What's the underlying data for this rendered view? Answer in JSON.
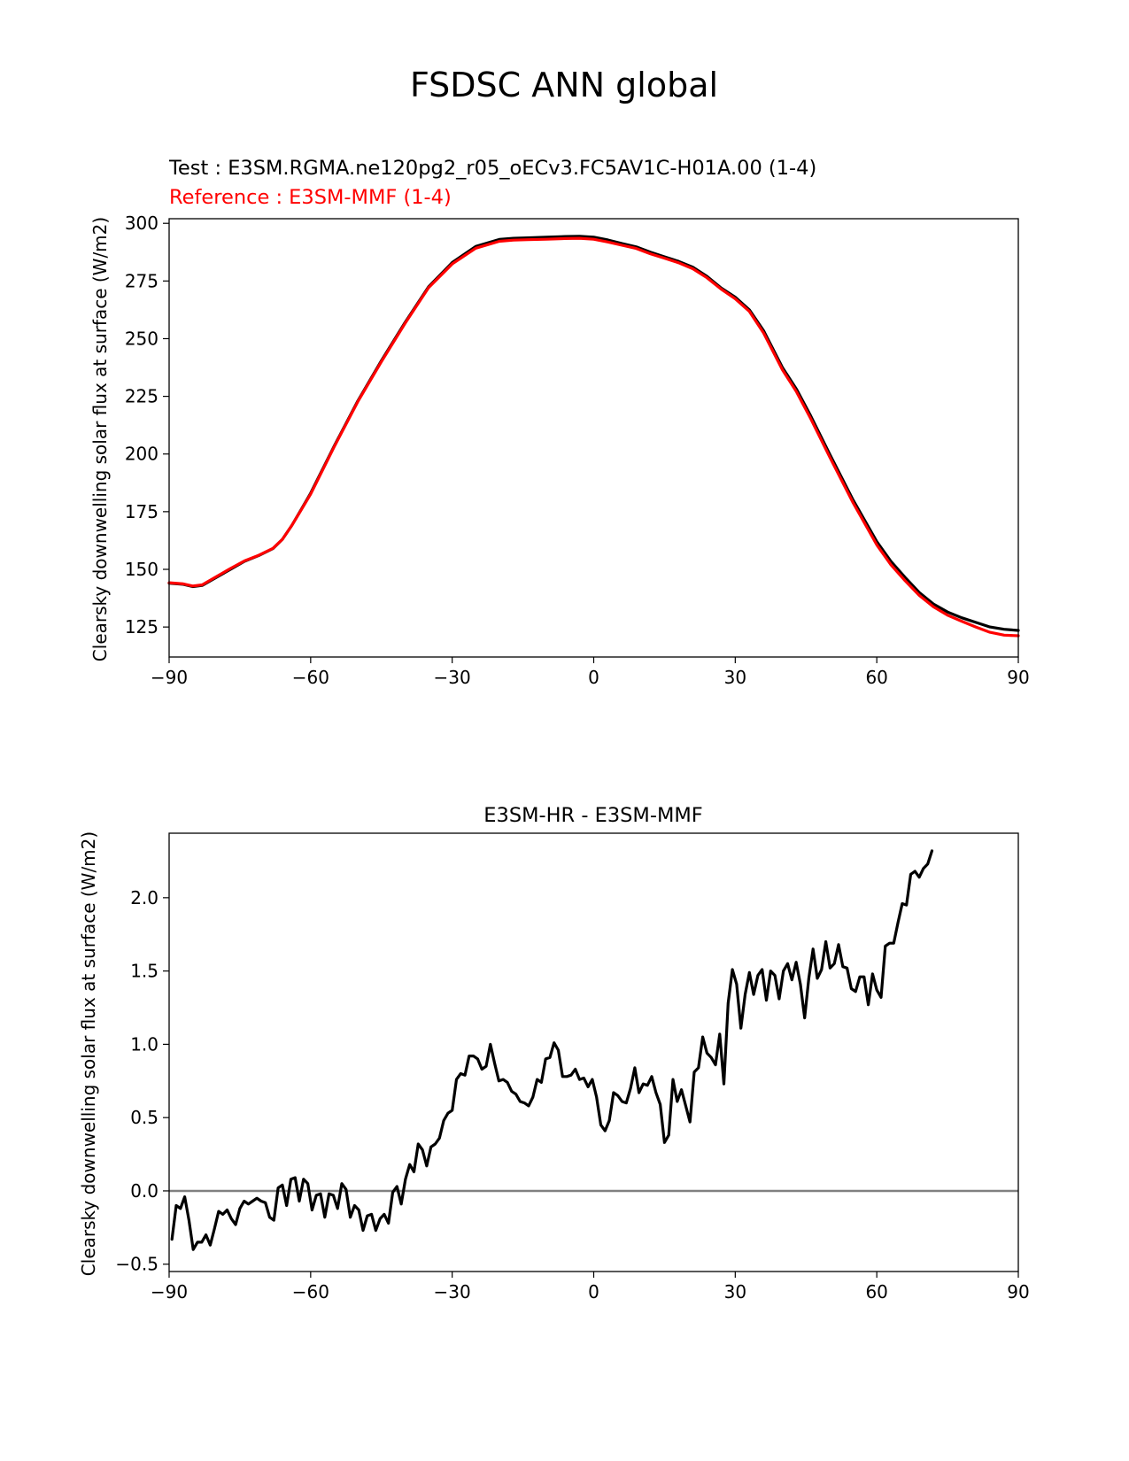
{
  "figure": {
    "suptitle": "FSDSC ANN global"
  },
  "chart_data": [
    {
      "type": "line",
      "test_label": "Test : E3SM.RGMA.ne120pg2_r05_oECv3.FC5AV1C-H01A.00 (1-4)",
      "ref_label": "Reference : E3SM-MMF (1-4)",
      "xlabel": "",
      "ylabel": "Clearsky downwelling solar flux at surface (W/m2)",
      "xlim": [
        -90,
        90
      ],
      "ylim": [
        112,
        302
      ],
      "xticks": [
        -90,
        -60,
        -30,
        0,
        30,
        60,
        90
      ],
      "xtick_labels": [
        "−90",
        "−60",
        "−30",
        "0",
        "30",
        "60",
        "90"
      ],
      "yticks": [
        125,
        150,
        175,
        200,
        225,
        250,
        275,
        300
      ],
      "ytick_labels": [
        "125",
        "150",
        "175",
        "200",
        "225",
        "250",
        "275",
        "300"
      ],
      "series": [
        {
          "name": "Test",
          "color": "#000000",
          "x": [
            -90,
            -87,
            -85,
            -83,
            -80,
            -77,
            -74,
            -71,
            -68,
            -66,
            -64,
            -62,
            -60,
            -55,
            -50,
            -45,
            -40,
            -35,
            -30,
            -25,
            -20,
            -17,
            -14,
            -10,
            -6,
            -3,
            0,
            3,
            6,
            9,
            12,
            15,
            18,
            21,
            24,
            27,
            30,
            33,
            36,
            40,
            43,
            46,
            50,
            55,
            60,
            63,
            66,
            69,
            72,
            75,
            78,
            81,
            84,
            87,
            90
          ],
          "values": [
            144.0,
            143.5,
            142.5,
            143.0,
            146.5,
            150.0,
            153.5,
            156.0,
            159.0,
            163.0,
            169.0,
            176.0,
            183.0,
            203.5,
            223.0,
            240.5,
            257.0,
            272.5,
            283.0,
            290.0,
            293.0,
            293.5,
            293.7,
            294.0,
            294.3,
            294.4,
            294.0,
            292.8,
            291.2,
            289.8,
            287.5,
            285.5,
            283.5,
            281.0,
            277.0,
            272.0,
            268.0,
            262.5,
            253.5,
            237.5,
            228.0,
            216.5,
            200.0,
            180.0,
            162.0,
            153.5,
            146.5,
            140.0,
            135.0,
            131.5,
            129.0,
            127.0,
            125.0,
            124.0,
            123.5
          ]
        },
        {
          "name": "Reference",
          "color": "#ff0000",
          "x": [
            -90,
            -87,
            -85,
            -83,
            -80,
            -77,
            -74,
            -71,
            -68,
            -66,
            -64,
            -62,
            -60,
            -55,
            -50,
            -45,
            -40,
            -35,
            -30,
            -25,
            -20,
            -17,
            -14,
            -10,
            -6,
            -3,
            0,
            3,
            6,
            9,
            12,
            15,
            18,
            21,
            24,
            27,
            30,
            33,
            36,
            40,
            43,
            46,
            50,
            55,
            60,
            63,
            66,
            69,
            72,
            75,
            78,
            81,
            84,
            87,
            90
          ],
          "values": [
            144.2,
            143.7,
            142.8,
            143.3,
            146.8,
            150.4,
            153.7,
            156.1,
            159.1,
            163.0,
            169.0,
            175.8,
            182.6,
            203.2,
            222.7,
            240.1,
            256.6,
            272.1,
            282.4,
            289.2,
            292.2,
            292.7,
            292.9,
            293.1,
            293.4,
            293.5,
            293.1,
            291.9,
            290.5,
            289.1,
            286.8,
            284.9,
            282.9,
            280.3,
            276.4,
            271.5,
            267.3,
            261.8,
            252.5,
            236.5,
            226.9,
            215.3,
            198.8,
            178.8,
            160.6,
            152.0,
            145.1,
            138.7,
            133.8,
            130.1,
            127.5,
            125.0,
            122.7,
            121.5,
            121.2
          ]
        }
      ]
    },
    {
      "type": "line",
      "title": "E3SM-HR - E3SM-MMF",
      "xlabel": "",
      "ylabel": "Clearsky downwelling solar flux at surface (W/m2)",
      "xlim": [
        -90,
        90
      ],
      "ylim": [
        -0.55,
        2.44
      ],
      "xticks": [
        -90,
        -60,
        -30,
        0,
        30,
        60,
        90
      ],
      "xtick_labels": [
        "−90",
        "−60",
        "−30",
        "0",
        "30",
        "60",
        "90"
      ],
      "yticks": [
        -0.5,
        0.0,
        0.5,
        1.0,
        1.5,
        2.0
      ],
      "ytick_labels": [
        "−0.5",
        "0.0",
        "0.5",
        "1.0",
        "1.5",
        "2.0"
      ],
      "zero_line": {
        "y": 0.0,
        "color": "#808080"
      },
      "series": [
        {
          "name": "Difference",
          "color": "#000000",
          "x_start": -89.4,
          "x_step": 0.9,
          "values": [
            -0.33,
            -0.1,
            -0.12,
            -0.04,
            -0.2,
            -0.4,
            -0.35,
            -0.35,
            -0.3,
            -0.37,
            -0.26,
            -0.14,
            -0.16,
            -0.13,
            -0.19,
            -0.23,
            -0.12,
            -0.07,
            -0.09,
            -0.07,
            -0.05,
            -0.07,
            -0.08,
            -0.18,
            -0.2,
            0.02,
            0.04,
            -0.1,
            0.08,
            0.09,
            -0.07,
            0.08,
            0.05,
            -0.13,
            -0.03,
            -0.02,
            -0.18,
            -0.02,
            -0.03,
            -0.12,
            0.05,
            0.01,
            -0.18,
            -0.1,
            -0.13,
            -0.27,
            -0.17,
            -0.16,
            -0.27,
            -0.19,
            -0.16,
            -0.22,
            -0.01,
            0.03,
            -0.09,
            0.08,
            0.18,
            0.13,
            0.32,
            0.28,
            0.17,
            0.3,
            0.32,
            0.36,
            0.48,
            0.53,
            0.55,
            0.76,
            0.8,
            0.79,
            0.92,
            0.92,
            0.9,
            0.83,
            0.85,
            1.0,
            0.87,
            0.75,
            0.76,
            0.74,
            0.68,
            0.66,
            0.61,
            0.6,
            0.58,
            0.64,
            0.76,
            0.74,
            0.9,
            0.91,
            1.01,
            0.96,
            0.78,
            0.78,
            0.79,
            0.83,
            0.76,
            0.77,
            0.71,
            0.76,
            0.64,
            0.45,
            0.41,
            0.48,
            0.67,
            0.65,
            0.61,
            0.6,
            0.7,
            0.84,
            0.67,
            0.73,
            0.72,
            0.78,
            0.67,
            0.59,
            0.33,
            0.38,
            0.76,
            0.61,
            0.69,
            0.58,
            0.47,
            0.81,
            0.84,
            1.05,
            0.94,
            0.91,
            0.86,
            1.07,
            0.73,
            1.28,
            1.51,
            1.41,
            1.11,
            1.34,
            1.49,
            1.34,
            1.47,
            1.51,
            1.3,
            1.5,
            1.47,
            1.31,
            1.5,
            1.55,
            1.44,
            1.56,
            1.41,
            1.18,
            1.45,
            1.65,
            1.45,
            1.51,
            1.7,
            1.52,
            1.55,
            1.68,
            1.53,
            1.52,
            1.38,
            1.36,
            1.46,
            1.46,
            1.27,
            1.48,
            1.37,
            1.32,
            1.67,
            1.69,
            1.69,
            1.83,
            1.96,
            1.95,
            2.16,
            2.18,
            2.14,
            2.2,
            2.23,
            2.32
          ]
        }
      ]
    }
  ]
}
